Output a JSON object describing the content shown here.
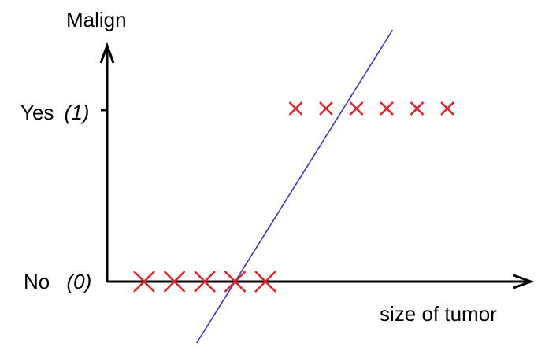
{
  "labels": {
    "y_axis": "Malign",
    "x_axis": "size of tumor",
    "yes": "Yes",
    "yes_value": "(1)",
    "no": "No",
    "no_value": "(0)"
  },
  "colors": {
    "axis": "#000000",
    "marker": "#e0202a",
    "line": "#3a3ab8"
  },
  "chart_data": {
    "type": "scatter",
    "title": "",
    "xlabel": "size of tumor",
    "ylabel": "Malign",
    "y_ticks": [
      {
        "value": 0,
        "label": "No (0)"
      },
      {
        "value": 1,
        "label": "Yes (1)"
      }
    ],
    "x": [
      1,
      2,
      3,
      4,
      5,
      6,
      7,
      8,
      9,
      10,
      11
    ],
    "y": [
      0,
      0,
      0,
      0,
      0,
      1,
      1,
      1,
      1,
      1,
      1
    ],
    "fit_line": {
      "slope": 0.28,
      "intercept": -1.12
    }
  }
}
